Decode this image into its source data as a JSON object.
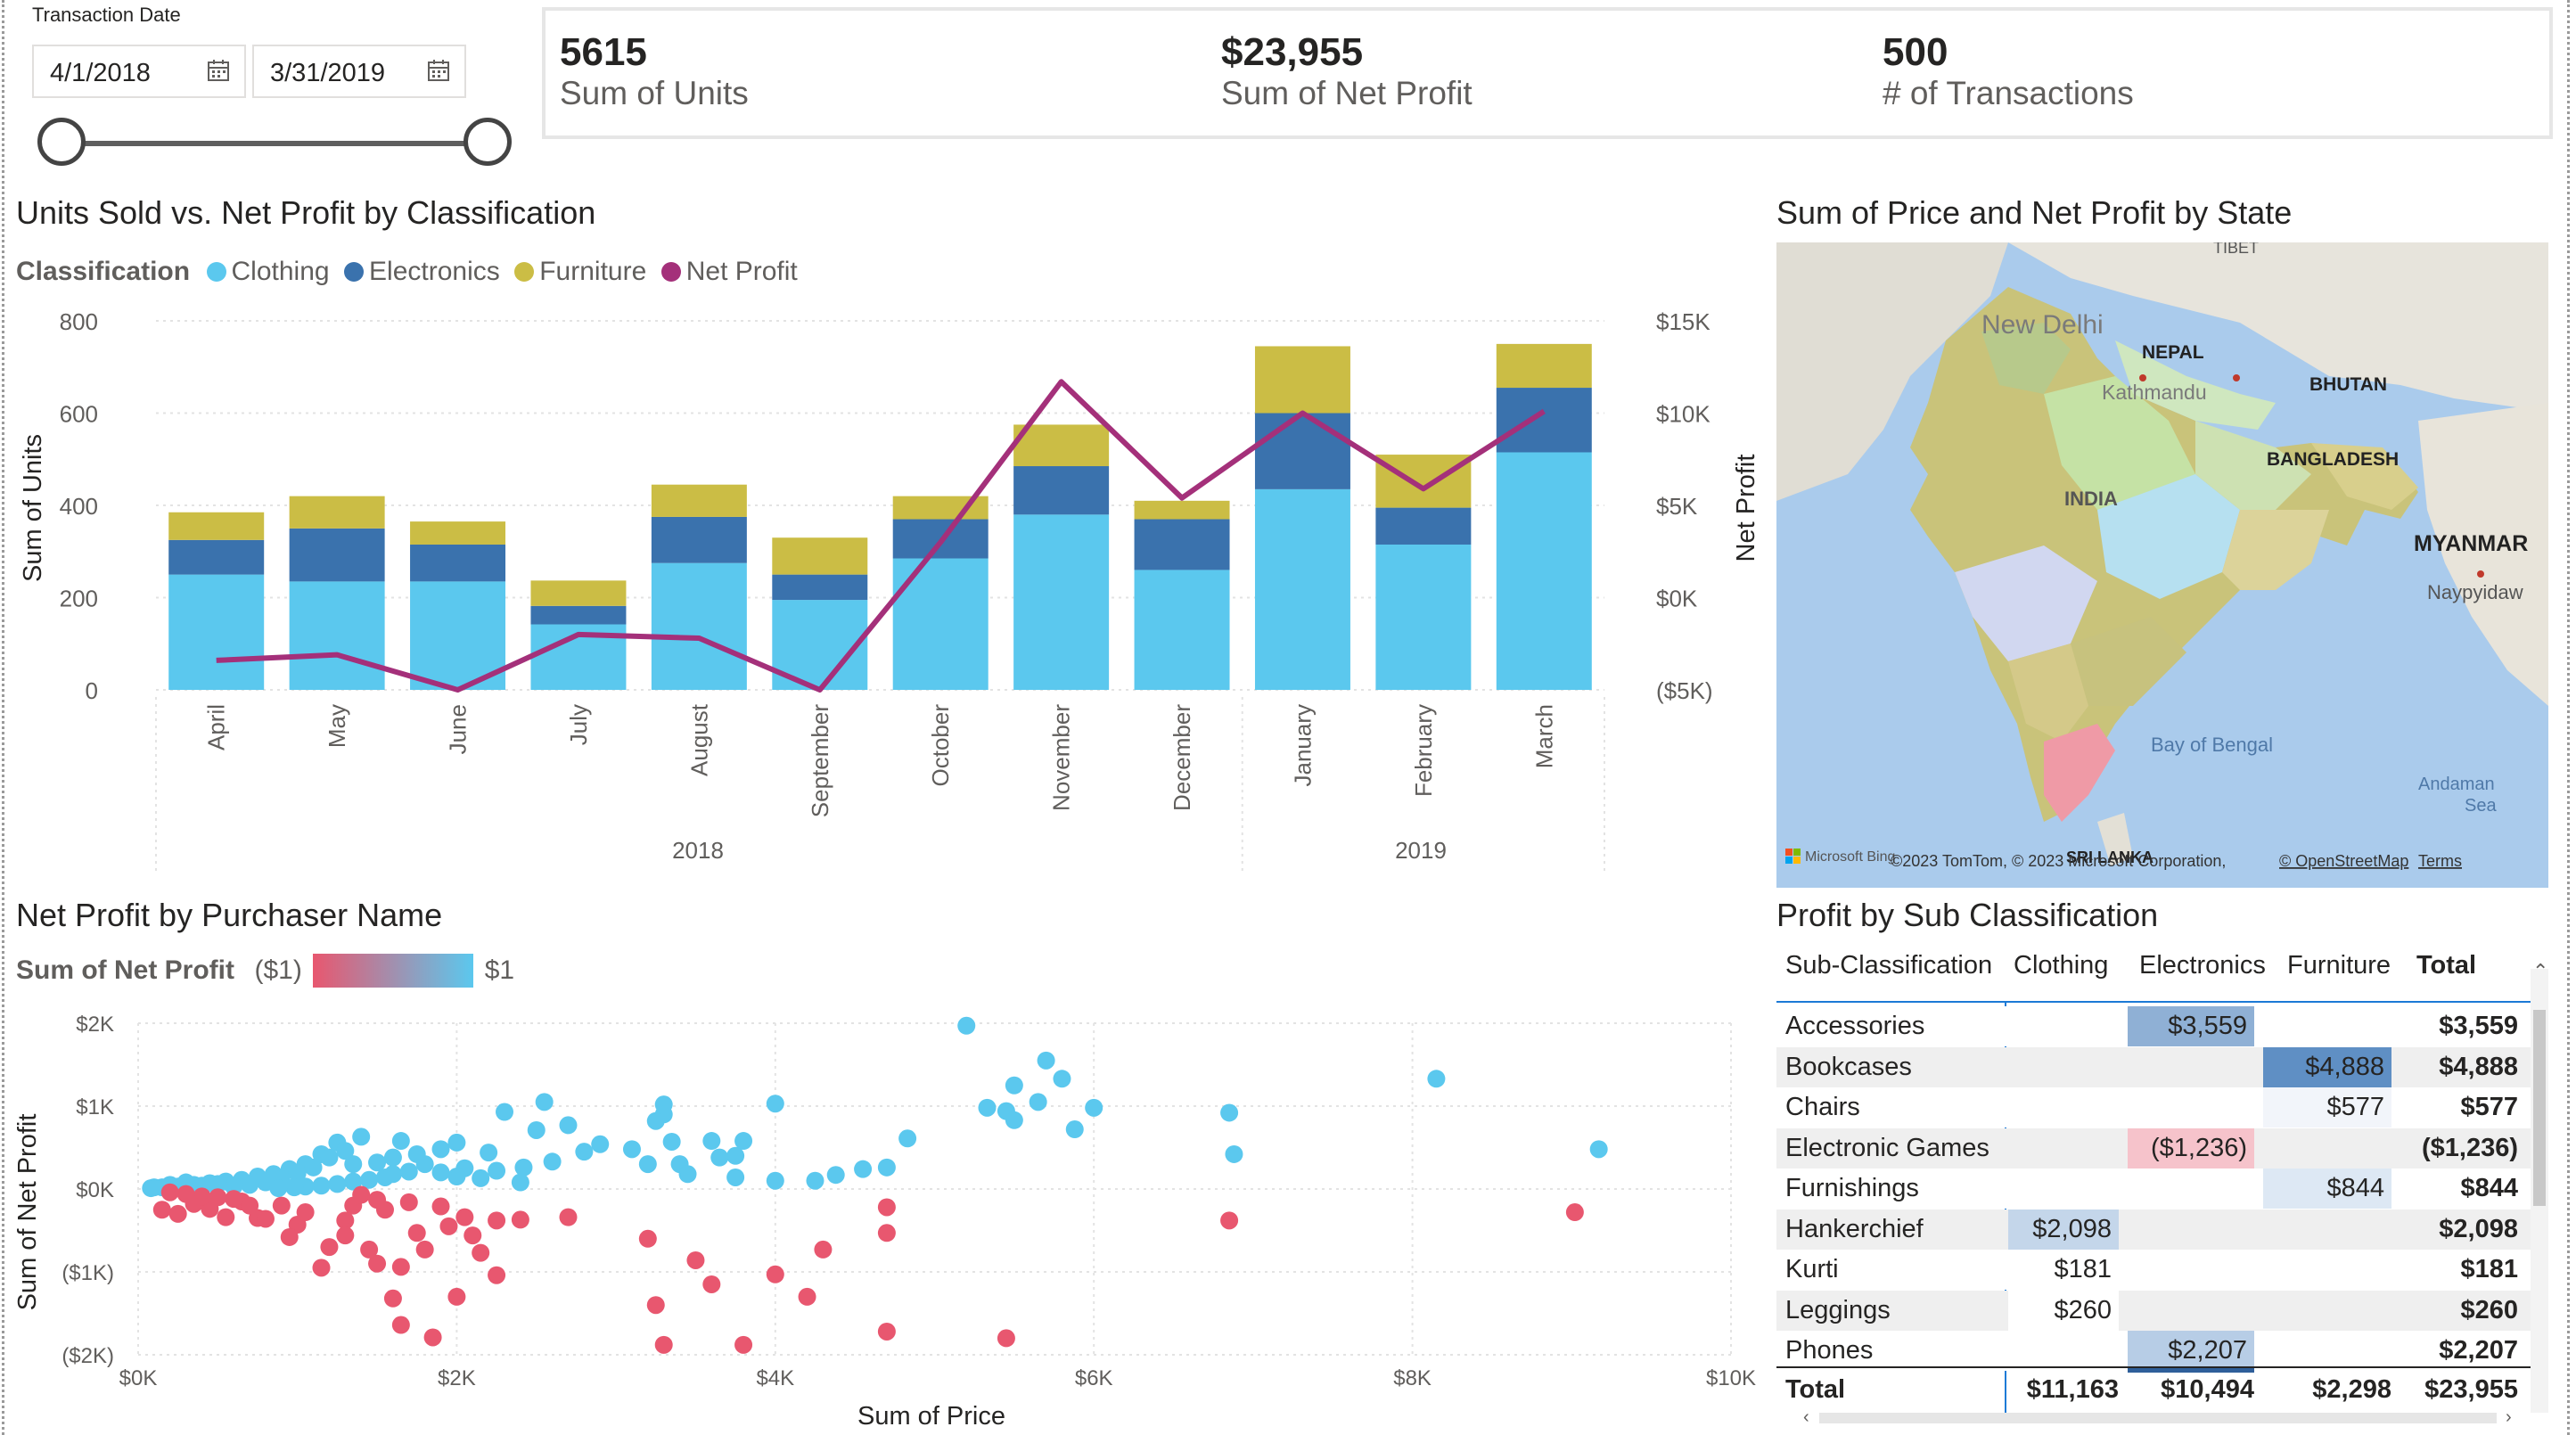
{
  "slicer": {
    "title": "Transaction Date",
    "start_date": "4/1/2018",
    "end_date": "3/31/2019",
    "start_icon": "calendar-icon",
    "end_icon": "calendar-icon"
  },
  "kpis": [
    {
      "value": "5615",
      "label": "Sum of Units"
    },
    {
      "value": "$23,955",
      "label": "Sum of Net Profit"
    },
    {
      "value": "500",
      "label": "# of Transactions"
    }
  ],
  "combo": {
    "title": "Units Sold vs. Net Profit by Classification",
    "legend_title": "Classification",
    "legend": [
      {
        "name": "Clothing",
        "color": "#5bc8ee"
      },
      {
        "name": "Electronics",
        "color": "#3a72ad"
      },
      {
        "name": "Furniture",
        "color": "#cbbd45"
      },
      {
        "name": "Net Profit",
        "color": "#a4307a"
      }
    ],
    "left_ticks": [
      "800",
      "600",
      "400",
      "200",
      "0"
    ],
    "right_ticks": [
      "$15K",
      "$10K",
      "$5K",
      "$0K",
      "($5K)"
    ],
    "years": [
      "2018",
      "2019"
    ]
  },
  "scatter": {
    "title": "Net Profit by Purchaser Name",
    "legend_title": "Sum of Net Profit",
    "legend_min": "($1)",
    "legend_max": "$1",
    "x_ticks": [
      "$0K",
      "$2K",
      "$4K",
      "$6K",
      "$8K",
      "$10K"
    ],
    "y_ticks": [
      "$2K",
      "$1K",
      "$0K",
      "($1K)",
      "($2K)"
    ],
    "low_color": "#e8576f",
    "high_color": "#5bc8ee"
  },
  "map": {
    "title": "Sum of Price and Net Profit by State",
    "labels": {
      "tibet": "TIBET",
      "new_delhi": "New Delhi",
      "nepal": "NEPAL",
      "kathmandu": "Kathmandu",
      "bhutan": "BHUTAN",
      "bangladesh": "BANGLADESH",
      "india": "INDIA",
      "myanmar": "MYANMAR",
      "naypyidaw": "Naypyidaw",
      "bay": "Bay of Bengal",
      "andaman": "Andaman",
      "andaman2": "Sea",
      "srilanka": "SRI LANKA"
    },
    "attribution": "©2023 TomTom, © 2023 Microsoft Corporation,",
    "osm": "© OpenStreetMap",
    "terms": "Terms",
    "bing": "Microsoft Bing"
  },
  "matrix": {
    "title": "Profit by Sub Classification",
    "columns": [
      "Sub-Classification",
      "Clothing",
      "Electronics",
      "Furniture",
      "Total"
    ],
    "rows": [
      {
        "name": "Accessories",
        "clothing": "",
        "electronics": "$3,559",
        "furniture": "",
        "total": "$3,559"
      },
      {
        "name": "Bookcases",
        "clothing": "",
        "electronics": "",
        "furniture": "$4,888",
        "total": "$4,888"
      },
      {
        "name": "Chairs",
        "clothing": "",
        "electronics": "",
        "furniture": "$577",
        "total": "$577"
      },
      {
        "name": "Electronic Games",
        "clothing": "",
        "electronics": "($1,236)",
        "furniture": "",
        "total": "($1,236)"
      },
      {
        "name": "Furnishings",
        "clothing": "",
        "electronics": "",
        "furniture": "$844",
        "total": "$844"
      },
      {
        "name": "Hankerchief",
        "clothing": "$2,098",
        "electronics": "",
        "furniture": "",
        "total": "$2,098"
      },
      {
        "name": "Kurti",
        "clothing": "$181",
        "electronics": "",
        "furniture": "",
        "total": "$181"
      },
      {
        "name": "Leggings",
        "clothing": "$260",
        "electronics": "",
        "furniture": "",
        "total": "$260"
      },
      {
        "name": "Phones",
        "clothing": "",
        "electronics": "$2,207",
        "furniture": "",
        "total": "$2,207"
      }
    ],
    "totals": {
      "name": "Total",
      "clothing": "$11,163",
      "electronics": "$10,494",
      "furniture": "$2,298",
      "total": "$23,955"
    }
  },
  "chart_data": [
    {
      "type": "bar",
      "title": "Units Sold vs. Net Profit by Classification",
      "xlabel": "",
      "ylabel": "Sum of Units",
      "y2label": "Net Profit",
      "ylim": [
        0,
        800
      ],
      "y2lim": [
        -5000,
        15000
      ],
      "stacked": true,
      "grid": true,
      "legend": "top-left",
      "categories": [
        "April",
        "May",
        "June",
        "July",
        "August",
        "September",
        "October",
        "November",
        "December",
        "January",
        "February",
        "March"
      ],
      "series": [
        {
          "name": "Clothing",
          "values": [
            250,
            235,
            235,
            142,
            275,
            195,
            285,
            380,
            260,
            435,
            315,
            515
          ]
        },
        {
          "name": "Electronics",
          "values": [
            75,
            115,
            80,
            40,
            100,
            55,
            85,
            105,
            110,
            165,
            80,
            140
          ]
        },
        {
          "name": "Furniture",
          "values": [
            60,
            70,
            50,
            55,
            70,
            80,
            50,
            90,
            40,
            145,
            115,
            95
          ]
        },
        {
          "name": "Net Profit",
          "axis": "right",
          "values": [
            -3400,
            -3100,
            -5000,
            -2000,
            -2200,
            -5000,
            3000,
            11700,
            5400,
            10000,
            5900,
            10100
          ]
        }
      ]
    },
    {
      "type": "scatter",
      "title": "Net Profit by Purchaser Name",
      "xlabel": "Sum of Price",
      "ylabel": "Sum of Net Profit",
      "xlim": [
        0,
        10000
      ],
      "ylim": [
        -2000,
        2000
      ],
      "grid": true,
      "legend": "top-left",
      "points": [
        [
          5200,
          1970
        ],
        [
          5700,
          1550
        ],
        [
          5800,
          1330
        ],
        [
          5500,
          1250
        ],
        [
          5650,
          1050
        ],
        [
          8150,
          1330
        ],
        [
          6000,
          980
        ],
        [
          5450,
          940
        ],
        [
          5330,
          980
        ],
        [
          5500,
          830
        ],
        [
          6850,
          920
        ],
        [
          9170,
          480
        ],
        [
          6880,
          420
        ],
        [
          5880,
          720
        ],
        [
          4830,
          610
        ],
        [
          4000,
          1030
        ],
        [
          3300,
          1020
        ],
        [
          3300,
          900
        ],
        [
          3250,
          820
        ],
        [
          3350,
          570
        ],
        [
          3600,
          580
        ],
        [
          3800,
          580
        ],
        [
          2550,
          1050
        ],
        [
          2300,
          930
        ],
        [
          2700,
          770
        ],
        [
          2500,
          710
        ],
        [
          2900,
          540
        ],
        [
          2800,
          450
        ],
        [
          3100,
          480
        ],
        [
          2600,
          330
        ],
        [
          3200,
          300
        ],
        [
          3400,
          300
        ],
        [
          3650,
          380
        ],
        [
          3750,
          400
        ],
        [
          3450,
          180
        ],
        [
          3750,
          140
        ],
        [
          4000,
          100
        ],
        [
          4250,
          100
        ],
        [
          4700,
          260
        ],
        [
          4380,
          170
        ],
        [
          4550,
          240
        ],
        [
          2200,
          440
        ],
        [
          2420,
          260
        ],
        [
          2250,
          220
        ],
        [
          2000,
          560
        ],
        [
          1900,
          480
        ],
        [
          1750,
          420
        ],
        [
          1600,
          380
        ],
        [
          1500,
          320
        ],
        [
          1350,
          300
        ],
        [
          1250,
          560
        ],
        [
          1150,
          420
        ],
        [
          1050,
          300
        ],
        [
          950,
          240
        ],
        [
          850,
          180
        ],
        [
          750,
          150
        ],
        [
          650,
          110
        ],
        [
          550,
          90
        ],
        [
          450,
          70
        ],
        [
          350,
          50
        ],
        [
          250,
          30
        ],
        [
          150,
          20
        ],
        [
          80,
          10
        ],
        [
          1650,
          580
        ],
        [
          1400,
          630
        ],
        [
          1300,
          460
        ],
        [
          1200,
          380
        ],
        [
          1100,
          260
        ],
        [
          1000,
          190
        ],
        [
          900,
          120
        ],
        [
          800,
          80
        ],
        [
          700,
          50
        ],
        [
          600,
          30
        ],
        [
          500,
          60
        ],
        [
          400,
          40
        ],
        [
          300,
          80
        ],
        [
          200,
          50
        ],
        [
          100,
          20
        ],
        [
          1800,
          300
        ],
        [
          2050,
          250
        ],
        [
          2150,
          130
        ],
        [
          2400,
          80
        ],
        [
          2000,
          150
        ],
        [
          1900,
          200
        ],
        [
          1700,
          210
        ],
        [
          1600,
          180
        ],
        [
          1550,
          140
        ],
        [
          1450,
          110
        ],
        [
          1350,
          90
        ],
        [
          1250,
          60
        ],
        [
          1150,
          40
        ],
        [
          1050,
          30
        ],
        [
          980,
          20
        ],
        [
          880,
          10
        ],
        [
          4700,
          -220
        ],
        [
          4700,
          -530
        ],
        [
          4700,
          -1720
        ],
        [
          3800,
          -1880
        ],
        [
          3200,
          -600
        ],
        [
          3500,
          -860
        ],
        [
          3600,
          -1150
        ],
        [
          4000,
          -1030
        ],
        [
          4200,
          -1300
        ],
        [
          3250,
          -1400
        ],
        [
          3300,
          -1880
        ],
        [
          5450,
          -1800
        ],
        [
          4300,
          -730
        ],
        [
          6850,
          -380
        ],
        [
          9020,
          -280
        ],
        [
          1000,
          -430
        ],
        [
          1200,
          -700
        ],
        [
          1500,
          -900
        ],
        [
          1600,
          -1320
        ],
        [
          1650,
          -1640
        ],
        [
          1850,
          -1790
        ],
        [
          2000,
          -1300
        ],
        [
          1750,
          -530
        ],
        [
          1550,
          -250
        ],
        [
          1350,
          -200
        ],
        [
          1300,
          -380
        ],
        [
          1050,
          -280
        ],
        [
          900,
          -200
        ],
        [
          750,
          -350
        ],
        [
          650,
          -150
        ],
        [
          550,
          -340
        ],
        [
          450,
          -240
        ],
        [
          350,
          -180
        ],
        [
          250,
          -300
        ],
        [
          150,
          -250
        ],
        [
          1950,
          -450
        ],
        [
          2150,
          -770
        ],
        [
          2250,
          -1040
        ],
        [
          2050,
          -340
        ],
        [
          2250,
          -380
        ],
        [
          2400,
          -370
        ],
        [
          2700,
          -340
        ],
        [
          2100,
          -560
        ],
        [
          1800,
          -730
        ],
        [
          1650,
          -940
        ],
        [
          1450,
          -730
        ],
        [
          1300,
          -560
        ],
        [
          1150,
          -950
        ],
        [
          950,
          -580
        ],
        [
          800,
          -360
        ],
        [
          700,
          -200
        ],
        [
          600,
          -120
        ],
        [
          500,
          -100
        ],
        [
          400,
          -90
        ],
        [
          300,
          -60
        ],
        [
          200,
          -40
        ],
        [
          1900,
          -210
        ],
        [
          1700,
          -160
        ],
        [
          1500,
          -130
        ],
        [
          1400,
          -70
        ]
      ]
    }
  ]
}
